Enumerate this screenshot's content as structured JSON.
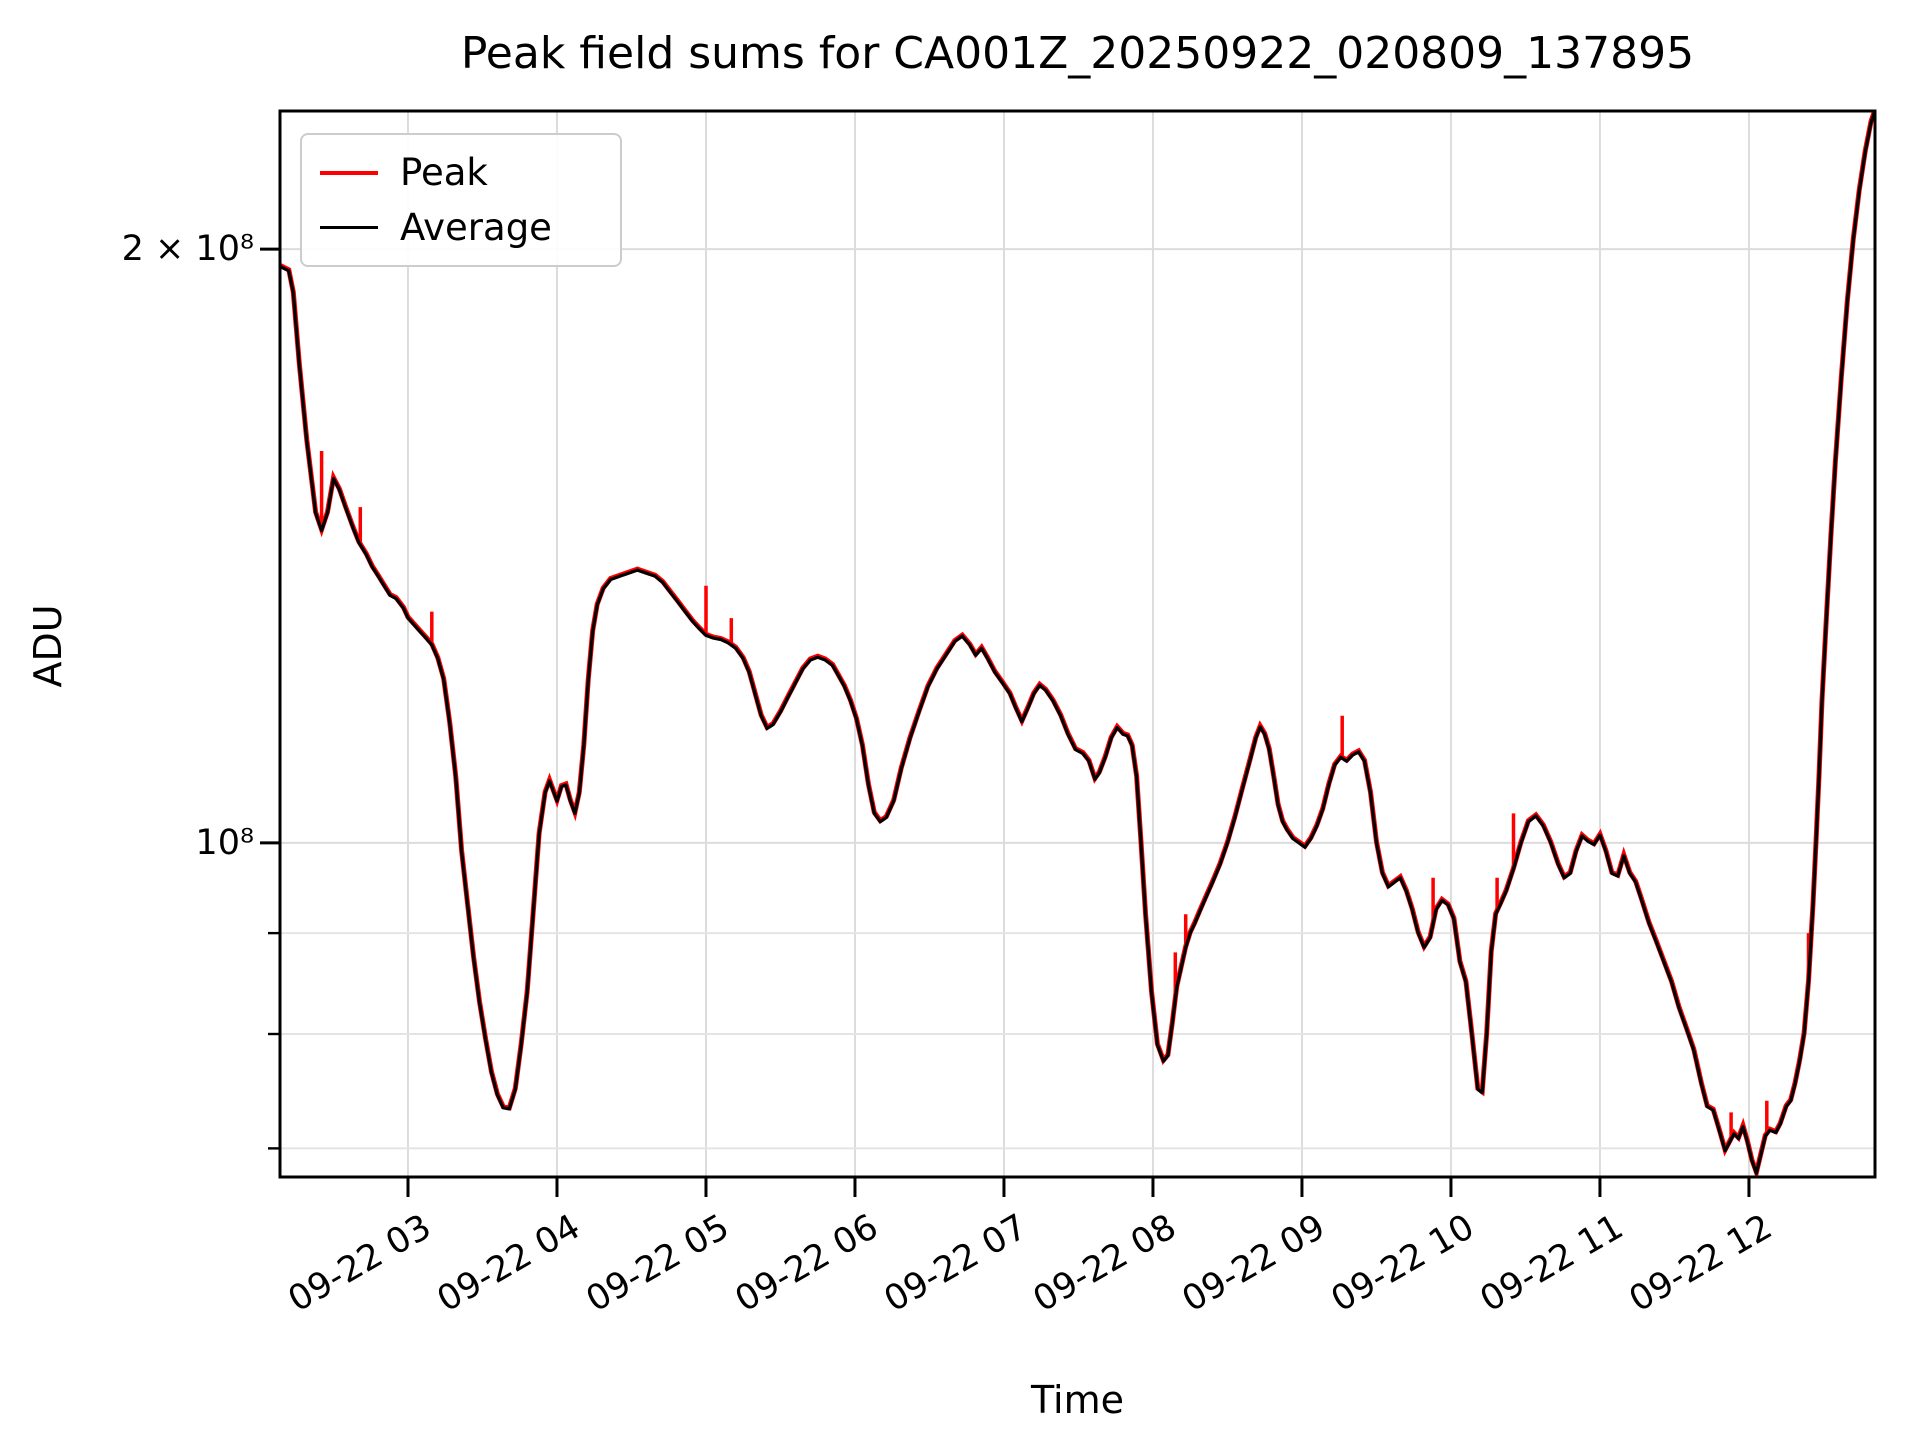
{
  "title": "Peak field sums for CA001Z_20250922_020809_137895",
  "axes": {
    "x_label": "Time",
    "y_label": "ADU",
    "y_major_ticks": [
      {
        "label": "2 × 10⁸",
        "value": 200000000
      },
      {
        "label": "10⁸",
        "value": 100000000
      }
    ],
    "y_minor_tick_values": [
      90000000,
      80000000,
      70000000
    ],
    "x_ticks": [
      {
        "label": "09-22 03",
        "hour": 3
      },
      {
        "label": "09-22 04",
        "hour": 4
      },
      {
        "label": "09-22 05",
        "hour": 5
      },
      {
        "label": "09-22 06",
        "hour": 6
      },
      {
        "label": "09-22 07",
        "hour": 7
      },
      {
        "label": "09-22 08",
        "hour": 8
      },
      {
        "label": "09-22 09",
        "hour": 9
      },
      {
        "label": "09-22 10",
        "hour": 10
      },
      {
        "label": "09-22 11",
        "hour": 11
      },
      {
        "label": "09-22 12",
        "hour": 12
      }
    ]
  },
  "legend": {
    "items": [
      {
        "label": "Peak",
        "color": "#ff0000"
      },
      {
        "label": "Average",
        "color": "#000000"
      }
    ]
  },
  "chart_data": {
    "type": "line",
    "title": "Peak field sums for CA001Z_20250922_020809_137895",
    "xlabel": "Time",
    "ylabel": "ADU",
    "y_scale": "log",
    "grid": true,
    "legend_position": "upper left",
    "x_unit": "hours on 2025-09-22",
    "xlim": [
      2.141,
      12.846
    ],
    "ylim": [
      67700000,
      235000000
    ],
    "value_scale": 1000000,
    "series": [
      {
        "name": "Average",
        "color": "#000000",
        "points": [
          [
            2.141,
            196
          ],
          [
            2.2,
            195
          ],
          [
            2.23,
            190
          ],
          [
            2.27,
            175
          ],
          [
            2.32,
            160
          ],
          [
            2.38,
            147
          ],
          [
            2.42,
            144
          ],
          [
            2.46,
            147
          ],
          [
            2.5,
            153
          ],
          [
            2.54,
            151
          ],
          [
            2.58,
            148
          ],
          [
            2.63,
            144.5
          ],
          [
            2.67,
            142
          ],
          [
            2.72,
            140
          ],
          [
            2.76,
            138
          ],
          [
            2.8,
            136.5
          ],
          [
            2.84,
            135
          ],
          [
            2.88,
            133.5
          ],
          [
            2.92,
            133
          ],
          [
            2.97,
            131.5
          ],
          [
            3.0,
            130
          ],
          [
            3.04,
            129
          ],
          [
            3.08,
            128
          ],
          [
            3.12,
            127
          ],
          [
            3.16,
            126
          ],
          [
            3.2,
            124
          ],
          [
            3.24,
            121
          ],
          [
            3.28,
            115
          ],
          [
            3.32,
            108
          ],
          [
            3.36,
            99
          ],
          [
            3.4,
            93
          ],
          [
            3.44,
            87.5
          ],
          [
            3.48,
            83
          ],
          [
            3.52,
            79.5
          ],
          [
            3.56,
            76.5
          ],
          [
            3.6,
            74.5
          ],
          [
            3.64,
            73.4
          ],
          [
            3.68,
            73.3
          ],
          [
            3.72,
            75
          ],
          [
            3.76,
            79
          ],
          [
            3.8,
            84
          ],
          [
            3.84,
            92
          ],
          [
            3.88,
            101
          ],
          [
            3.92,
            106
          ],
          [
            3.95,
            107.5
          ],
          [
            3.98,
            106
          ],
          [
            4.0,
            105
          ],
          [
            4.03,
            106.8
          ],
          [
            4.06,
            107
          ],
          [
            4.09,
            105
          ],
          [
            4.12,
            103.5
          ],
          [
            4.15,
            106
          ],
          [
            4.18,
            112
          ],
          [
            4.21,
            121
          ],
          [
            4.24,
            128
          ],
          [
            4.27,
            132
          ],
          [
            4.31,
            134.5
          ],
          [
            4.36,
            136
          ],
          [
            4.42,
            136.5
          ],
          [
            4.48,
            137
          ],
          [
            4.54,
            137.5
          ],
          [
            4.6,
            137
          ],
          [
            4.66,
            136.5
          ],
          [
            4.71,
            135.5
          ],
          [
            4.76,
            134
          ],
          [
            4.81,
            132.5
          ],
          [
            4.86,
            131
          ],
          [
            4.91,
            129.5
          ],
          [
            4.96,
            128.3
          ],
          [
            5.0,
            127.4
          ],
          [
            5.05,
            127
          ],
          [
            5.1,
            126.8
          ],
          [
            5.15,
            126.3
          ],
          [
            5.2,
            125.5
          ],
          [
            5.25,
            124
          ],
          [
            5.29,
            122
          ],
          [
            5.33,
            119
          ],
          [
            5.37,
            116
          ],
          [
            5.41,
            114.3
          ],
          [
            5.45,
            114.8
          ],
          [
            5.5,
            116.5
          ],
          [
            5.55,
            118.5
          ],
          [
            5.6,
            120.5
          ],
          [
            5.65,
            122.5
          ],
          [
            5.7,
            123.8
          ],
          [
            5.75,
            124.2
          ],
          [
            5.8,
            123.8
          ],
          [
            5.85,
            123
          ],
          [
            5.89,
            121.5
          ],
          [
            5.93,
            120
          ],
          [
            5.97,
            118
          ],
          [
            6.01,
            115.5
          ],
          [
            6.05,
            112
          ],
          [
            6.09,
            107
          ],
          [
            6.13,
            103.5
          ],
          [
            6.17,
            102.5
          ],
          [
            6.21,
            103
          ],
          [
            6.26,
            105
          ],
          [
            6.31,
            109
          ],
          [
            6.37,
            113
          ],
          [
            6.43,
            116.5
          ],
          [
            6.49,
            120
          ],
          [
            6.55,
            122.5
          ],
          [
            6.61,
            124.5
          ],
          [
            6.67,
            126.5
          ],
          [
            6.72,
            127.3
          ],
          [
            6.77,
            126
          ],
          [
            6.81,
            124.5
          ],
          [
            6.85,
            125.5
          ],
          [
            6.89,
            124
          ],
          [
            6.94,
            122
          ],
          [
            6.99,
            120.5
          ],
          [
            7.04,
            119
          ],
          [
            7.08,
            117
          ],
          [
            7.12,
            115.2
          ],
          [
            7.16,
            117
          ],
          [
            7.2,
            119
          ],
          [
            7.24,
            120.2
          ],
          [
            7.28,
            119.5
          ],
          [
            7.33,
            118
          ],
          [
            7.38,
            116
          ],
          [
            7.43,
            113.5
          ],
          [
            7.48,
            111.5
          ],
          [
            7.53,
            111
          ],
          [
            7.57,
            110
          ],
          [
            7.61,
            107.7
          ],
          [
            7.64,
            108.5
          ],
          [
            7.68,
            110.5
          ],
          [
            7.72,
            113
          ],
          [
            7.76,
            114.4
          ],
          [
            7.8,
            113.5
          ],
          [
            7.83,
            113.3
          ],
          [
            7.86,
            112
          ],
          [
            7.89,
            108
          ],
          [
            7.92,
            100
          ],
          [
            7.95,
            92
          ],
          [
            7.99,
            84
          ],
          [
            8.03,
            79
          ],
          [
            8.07,
            77.5
          ],
          [
            8.1,
            78
          ],
          [
            8.13,
            81
          ],
          [
            8.16,
            84.5
          ],
          [
            8.19,
            86.5
          ],
          [
            8.22,
            88.5
          ],
          [
            8.25,
            90
          ],
          [
            8.28,
            91
          ],
          [
            8.32,
            92.5
          ],
          [
            8.36,
            94
          ],
          [
            8.4,
            95.5
          ],
          [
            8.45,
            97.5
          ],
          [
            8.5,
            100
          ],
          [
            8.55,
            103
          ],
          [
            8.6,
            106.5
          ],
          [
            8.65,
            110
          ],
          [
            8.69,
            113
          ],
          [
            8.72,
            114.5
          ],
          [
            8.75,
            113.5
          ],
          [
            8.78,
            111.5
          ],
          [
            8.81,
            108
          ],
          [
            8.84,
            104.5
          ],
          [
            8.87,
            102.5
          ],
          [
            8.9,
            101.5
          ],
          [
            8.94,
            100.5
          ],
          [
            8.98,
            100
          ],
          [
            9.02,
            99.5
          ],
          [
            9.06,
            100.5
          ],
          [
            9.1,
            102
          ],
          [
            9.14,
            104
          ],
          [
            9.18,
            107
          ],
          [
            9.22,
            109.5
          ],
          [
            9.26,
            110.5
          ],
          [
            9.3,
            110
          ],
          [
            9.34,
            110.8
          ],
          [
            9.38,
            111.2
          ],
          [
            9.42,
            110
          ],
          [
            9.46,
            106
          ],
          [
            9.5,
            100
          ],
          [
            9.54,
            96.5
          ],
          [
            9.58,
            95
          ],
          [
            9.62,
            95.5
          ],
          [
            9.66,
            96
          ],
          [
            9.7,
            94.5
          ],
          [
            9.74,
            92.5
          ],
          [
            9.78,
            90
          ],
          [
            9.82,
            88.5
          ],
          [
            9.86,
            89.5
          ],
          [
            9.9,
            92.5
          ],
          [
            9.94,
            93.5
          ],
          [
            9.98,
            93
          ],
          [
            10.02,
            91.5
          ],
          [
            10.06,
            87
          ],
          [
            10.1,
            85
          ],
          [
            10.14,
            80
          ],
          [
            10.18,
            75
          ],
          [
            10.21,
            74.7
          ],
          [
            10.24,
            80
          ],
          [
            10.27,
            88
          ],
          [
            10.3,
            92
          ],
          [
            10.33,
            93
          ],
          [
            10.37,
            94.5
          ],
          [
            10.42,
            97
          ],
          [
            10.47,
            100
          ],
          [
            10.52,
            102.5
          ],
          [
            10.57,
            103.2
          ],
          [
            10.62,
            102
          ],
          [
            10.67,
            100
          ],
          [
            10.72,
            97.5
          ],
          [
            10.76,
            96
          ],
          [
            10.8,
            96.5
          ],
          [
            10.84,
            99
          ],
          [
            10.88,
            100.8
          ],
          [
            10.92,
            100.2
          ],
          [
            10.96,
            99.8
          ],
          [
            11.0,
            100.9
          ],
          [
            11.04,
            99
          ],
          [
            11.08,
            96.5
          ],
          [
            11.12,
            96.2
          ],
          [
            11.16,
            98.5
          ],
          [
            11.2,
            96.5
          ],
          [
            11.24,
            95.5
          ],
          [
            11.28,
            93.5
          ],
          [
            11.33,
            91
          ],
          [
            11.38,
            89
          ],
          [
            11.43,
            87
          ],
          [
            11.48,
            85
          ],
          [
            11.53,
            82.5
          ],
          [
            11.58,
            80.5
          ],
          [
            11.63,
            78.5
          ],
          [
            11.68,
            75.5
          ],
          [
            11.72,
            73.5
          ],
          [
            11.76,
            73.2
          ],
          [
            11.8,
            71.5
          ],
          [
            11.84,
            69.8
          ],
          [
            11.87,
            70.5
          ],
          [
            11.9,
            71.2
          ],
          [
            11.93,
            70.8
          ],
          [
            11.96,
            71.8
          ],
          [
            11.99,
            70.5
          ],
          [
            12.02,
            69
          ],
          [
            12.05,
            68
          ],
          [
            12.08,
            69.5
          ],
          [
            12.11,
            71
          ],
          [
            12.14,
            71.5
          ],
          [
            12.18,
            71.3
          ],
          [
            12.21,
            72
          ],
          [
            12.25,
            73.5
          ],
          [
            12.28,
            74
          ],
          [
            12.31,
            75.5
          ],
          [
            12.34,
            77.5
          ],
          [
            12.37,
            80
          ],
          [
            12.4,
            85
          ],
          [
            12.43,
            93
          ],
          [
            12.45,
            100
          ],
          [
            12.47,
            108
          ],
          [
            12.49,
            118
          ],
          [
            12.52,
            130
          ],
          [
            12.55,
            143
          ],
          [
            12.58,
            156
          ],
          [
            12.62,
            172
          ],
          [
            12.66,
            188
          ],
          [
            12.7,
            202
          ],
          [
            12.74,
            214
          ],
          [
            12.78,
            224
          ],
          [
            12.82,
            232
          ],
          [
            12.85,
            235.5
          ]
        ]
      },
      {
        "name": "Peak",
        "color": "#ff0000",
        "follows": "Average",
        "spikes": [
          [
            2.42,
            158
          ],
          [
            2.68,
            148
          ],
          [
            3.16,
            131
          ],
          [
            5.0,
            135
          ],
          [
            5.17,
            130
          ],
          [
            8.15,
            88
          ],
          [
            8.22,
            92
          ],
          [
            9.27,
            116
          ],
          [
            9.88,
            96
          ],
          [
            10.31,
            96
          ],
          [
            10.42,
            103.5
          ],
          [
            11.88,
            73
          ],
          [
            12.12,
            74
          ],
          [
            12.4,
            90
          ]
        ]
      }
    ]
  }
}
